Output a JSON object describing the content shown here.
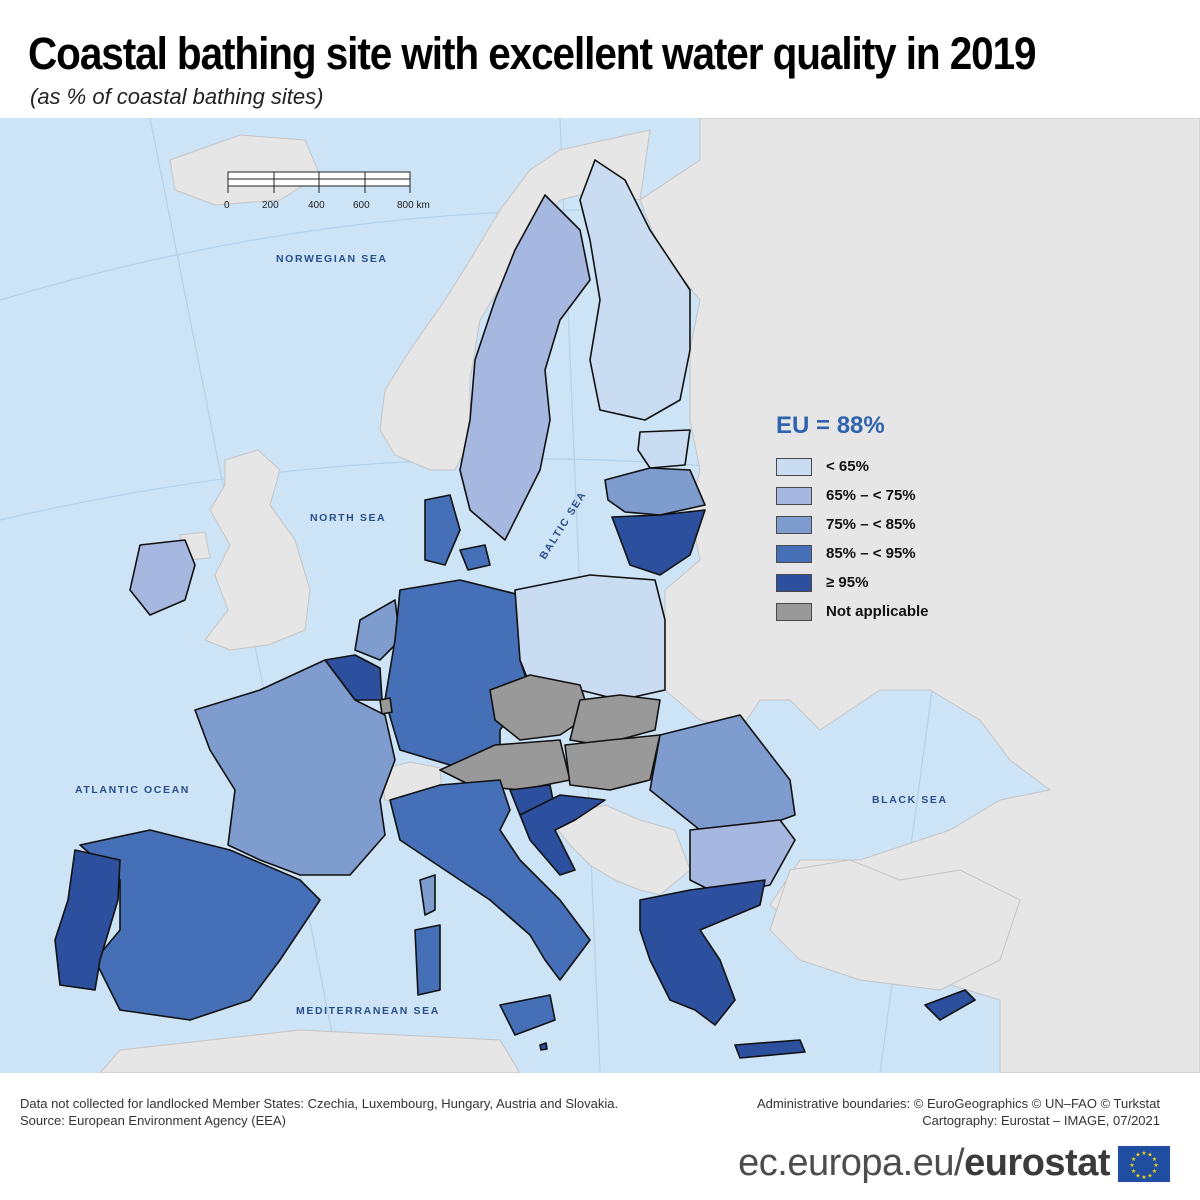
{
  "title": "Coastal bathing site with excellent water quality in 2019",
  "subtitle": "(as % of coastal bathing sites)",
  "eu_value_label": "EU = 88%",
  "legend": [
    {
      "label": "< 65%",
      "color": "#cadcf2"
    },
    {
      "label": "65% – < 75%",
      "color": "#a6b7e0"
    },
    {
      "label": "75% – < 85%",
      "color": "#7f9ccf"
    },
    {
      "label": "85% – < 95%",
      "color": "#4570b8"
    },
    {
      "label": "≥ 95%",
      "color": "#2c4f9e"
    },
    {
      "label": "Not applicable",
      "color": "#999999"
    }
  ],
  "seas": {
    "norwegian": "NORWEGIAN SEA",
    "north": "NORTH SEA",
    "baltic": "BALTIC SEA",
    "atlantic": "ATLANTIC OCEAN",
    "black": "BLACK SEA",
    "mediterranean": "MEDITERRANEAN SEA"
  },
  "scale_bar": {
    "ticks": [
      "0",
      "200",
      "400",
      "600",
      "800 km"
    ]
  },
  "colors": {
    "sea": "#cce4f6",
    "non_eu_land": "#e6e6e6",
    "border": "#111111"
  },
  "footnote_left": [
    "Data not collected for landlocked Member States: Czechia, Luxembourg, Hungary, Austria and Slovakia.",
    "Source: European Environment Agency (EEA)"
  ],
  "footnote_right": [
    "Administrative boundaries: © EuroGeographics © UN–FAO © Turkstat",
    "Cartography: Eurostat – IMAGE, 07/2021"
  ],
  "brand": {
    "prefix": "ec.europa.eu/",
    "name": "eurostat"
  }
}
